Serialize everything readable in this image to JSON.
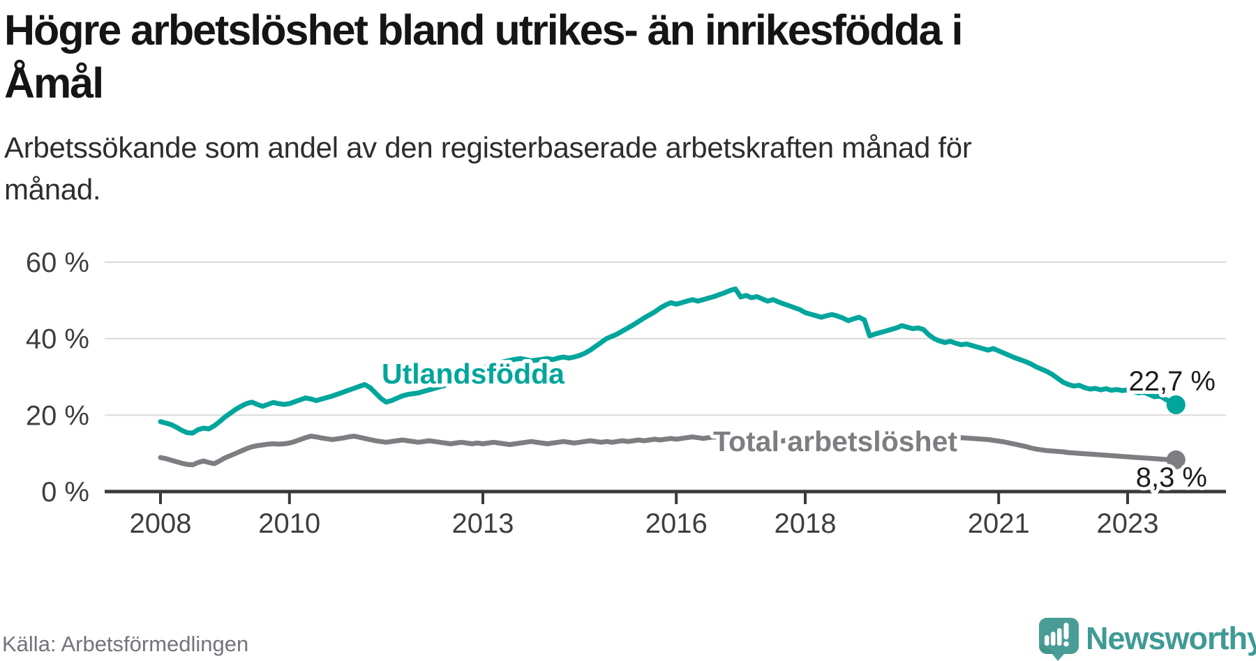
{
  "header": {
    "title_lines": [
      "Högre arbetslöshet bland utrikes- än inrikesfödda i",
      "Åmål"
    ],
    "subtitle_lines": [
      "Arbetssökande som andel av den registerbaserade arbetskraften månad för",
      "månad."
    ]
  },
  "footer": {
    "source": "Källa: Arbetsförmedlingen",
    "brand": "Newsworthy"
  },
  "colors": {
    "teal": "#00a59c",
    "gray": "#7d7d82",
    "axis": "#3a3a3a",
    "grid": "#d9d9d9",
    "brand_teal": "#3f9a95",
    "title_text": "#151515",
    "muted_text": "#73737b"
  },
  "chart_data": {
    "type": "line",
    "title": "Högre arbetslöshet bland utrikes- än inrikesfödda i Åmål",
    "subtitle": "Arbetssökande som andel av den registerbaserade arbetskraften månad för månad.",
    "x_unit": "month",
    "x_start": "2008-01",
    "x_end": "2023-10",
    "ylim": [
      0,
      65
    ],
    "grid": "horizontal",
    "legend_position": "inline-labels",
    "yticks": [
      {
        "value": 60,
        "label": "60 %"
      },
      {
        "value": 40,
        "label": "40 %"
      },
      {
        "value": 20,
        "label": "20 %"
      },
      {
        "value": 0,
        "label": "0 %"
      }
    ],
    "xticks": [
      {
        "year": 2008,
        "label": "2008"
      },
      {
        "year": 2010,
        "label": "2010"
      },
      {
        "year": 2013,
        "label": "2013"
      },
      {
        "year": 2016,
        "label": "2016"
      },
      {
        "year": 2018,
        "label": "2018"
      },
      {
        "year": 2021,
        "label": "2021"
      },
      {
        "year": 2023,
        "label": "2023"
      }
    ],
    "series": [
      {
        "name": "Utlandsfödda",
        "color": "#00a59c",
        "end_value": 22.7,
        "end_label": "22,7 %",
        "values": [
          18.3,
          17.9,
          17.5,
          16.8,
          16.0,
          15.4,
          15.3,
          16.2,
          16.6,
          16.4,
          17.2,
          18.3,
          19.5,
          20.5,
          21.5,
          22.3,
          23.0,
          23.4,
          22.8,
          22.3,
          22.8,
          23.3,
          23.0,
          22.8,
          23.0,
          23.5,
          24.0,
          24.5,
          24.2,
          23.8,
          24.2,
          24.6,
          25.0,
          25.5,
          26.0,
          26.5,
          27.0,
          27.5,
          28.0,
          27.2,
          25.8,
          24.4,
          23.4,
          23.8,
          24.4,
          25.0,
          25.4,
          25.6,
          25.8,
          26.2,
          26.6,
          27.0,
          27.4,
          27.8,
          28.3,
          28.8,
          29.4,
          30.0,
          30.8,
          31.6,
          32.2,
          32.8,
          33.3,
          33.7,
          34.0,
          34.3,
          34.6,
          34.8,
          34.5,
          34.2,
          34.4,
          34.6,
          34.8,
          34.5,
          34.9,
          35.2,
          34.9,
          35.2,
          35.6,
          36.2,
          37.0,
          38.0,
          39.0,
          40.0,
          40.6,
          41.2,
          42.0,
          42.8,
          43.6,
          44.5,
          45.4,
          46.2,
          47.0,
          48.0,
          48.8,
          49.4,
          49.0,
          49.4,
          49.8,
          50.2,
          49.8,
          50.2,
          50.6,
          51.0,
          51.5,
          52.0,
          52.6,
          53.0,
          50.9,
          51.3,
          50.7,
          51.0,
          50.4,
          49.8,
          50.2,
          49.6,
          49.1,
          48.6,
          48.1,
          47.6,
          46.8,
          46.4,
          46.0,
          45.6,
          46.0,
          46.3,
          45.9,
          45.4,
          44.7,
          45.2,
          45.6,
          44.9,
          40.7,
          41.2,
          41.6,
          42.0,
          42.4,
          42.8,
          43.4,
          43.0,
          42.6,
          42.8,
          42.4,
          41.0,
          40.0,
          39.4,
          39.0,
          39.3,
          38.8,
          38.4,
          38.6,
          38.2,
          37.8,
          37.4,
          37.0,
          37.4,
          36.8,
          36.2,
          35.6,
          35.0,
          34.5,
          34.0,
          33.4,
          32.6,
          32.0,
          31.4,
          30.6,
          29.6,
          28.6,
          28.0,
          27.6,
          27.8,
          27.2,
          26.8,
          27.0,
          26.6,
          26.9,
          26.5,
          26.7,
          26.4,
          26.6,
          26.2,
          25.8,
          26.0,
          25.4,
          24.8,
          25.0,
          24.2,
          23.4,
          22.7
        ]
      },
      {
        "name": "Total arbetslöshet",
        "color": "#7d7d82",
        "end_value": 8.3,
        "end_label": "8,3 %",
        "values": [
          8.9,
          8.6,
          8.2,
          7.8,
          7.4,
          7.1,
          7.0,
          7.6,
          8.0,
          7.6,
          7.3,
          8.0,
          8.8,
          9.4,
          10.0,
          10.6,
          11.2,
          11.7,
          12.0,
          12.2,
          12.4,
          12.5,
          12.4,
          12.5,
          12.7,
          13.1,
          13.6,
          14.1,
          14.5,
          14.3,
          14.0,
          13.8,
          13.6,
          13.8,
          14.0,
          14.3,
          14.5,
          14.2,
          13.9,
          13.6,
          13.3,
          13.1,
          12.9,
          13.1,
          13.3,
          13.5,
          13.3,
          13.1,
          12.9,
          13.1,
          13.3,
          13.1,
          12.9,
          12.7,
          12.5,
          12.7,
          12.9,
          12.7,
          12.5,
          12.7,
          12.5,
          12.7,
          12.9,
          12.7,
          12.5,
          12.3,
          12.5,
          12.7,
          12.9,
          13.1,
          12.9,
          12.7,
          12.5,
          12.7,
          12.9,
          13.1,
          12.9,
          12.7,
          12.9,
          13.1,
          13.3,
          13.1,
          12.9,
          13.1,
          12.9,
          13.1,
          13.3,
          13.1,
          13.3,
          13.5,
          13.3,
          13.5,
          13.7,
          13.5,
          13.7,
          13.9,
          13.7,
          13.9,
          14.1,
          14.3,
          14.1,
          13.9,
          14.1,
          14.3,
          14.1,
          13.9,
          13.7,
          13.9,
          13.7,
          13.5,
          13.7,
          13.5,
          13.3,
          13.5,
          13.3,
          13.1,
          13.3,
          13.5,
          13.3,
          13.5,
          13.3,
          13.5,
          13.7,
          13.5,
          13.3,
          13.1,
          13.3,
          13.5,
          13.3,
          13.1,
          13.3,
          13.1,
          12.9,
          13.1,
          13.3,
          13.1,
          12.9,
          13.1,
          13.3,
          13.1,
          12.9,
          12.7,
          12.9,
          13.1,
          13.2,
          13.4,
          13.6,
          13.8,
          14.0,
          14.1,
          14.0,
          13.9,
          13.8,
          13.7,
          13.6,
          13.4,
          13.2,
          13.0,
          12.7,
          12.4,
          12.1,
          11.8,
          11.4,
          11.1,
          10.9,
          10.7,
          10.6,
          10.5,
          10.4,
          10.2,
          10.1,
          10.0,
          9.9,
          9.8,
          9.7,
          9.6,
          9.5,
          9.4,
          9.3,
          9.2,
          9.1,
          9.0,
          8.9,
          8.8,
          8.7,
          8.6,
          8.5,
          8.4,
          8.3,
          8.3
        ]
      }
    ]
  }
}
